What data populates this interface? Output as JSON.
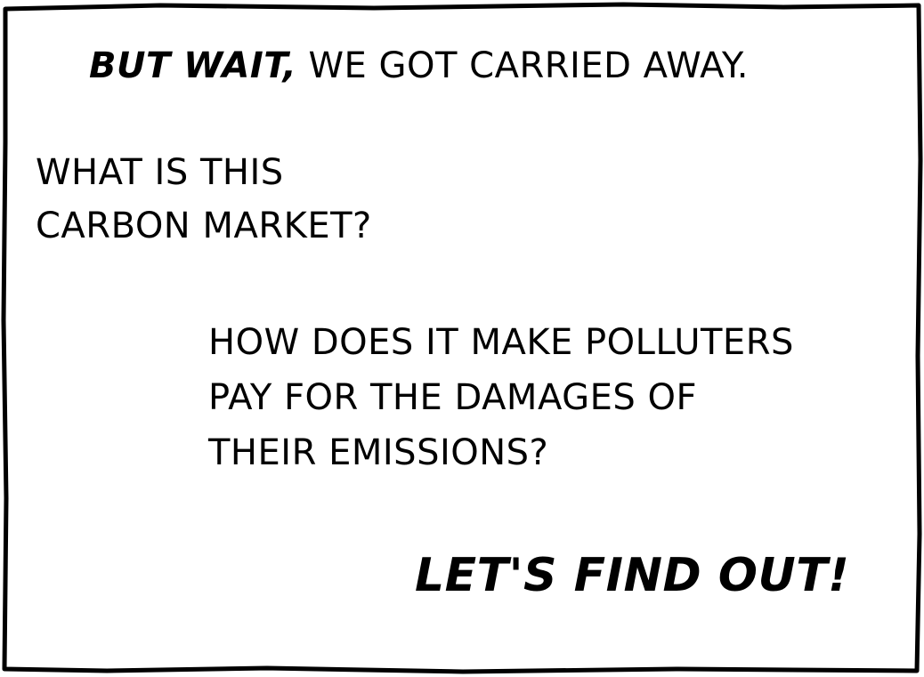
{
  "panel": {
    "intro_emphasis": "BUT WAIT,",
    "intro_rest": " WE GOT CARRIED AWAY.",
    "question_one": [
      "WHAT IS THIS",
      "CARBON MARKET?"
    ],
    "question_two": [
      "HOW DOES IT MAKE POLLUTERS",
      "PAY FOR THE DAMAGES OF",
      "THEIR EMISSIONS?"
    ],
    "outro": "LET'S FIND OUT!"
  },
  "colors": {
    "ink": "#000000",
    "paper": "#ffffff"
  }
}
